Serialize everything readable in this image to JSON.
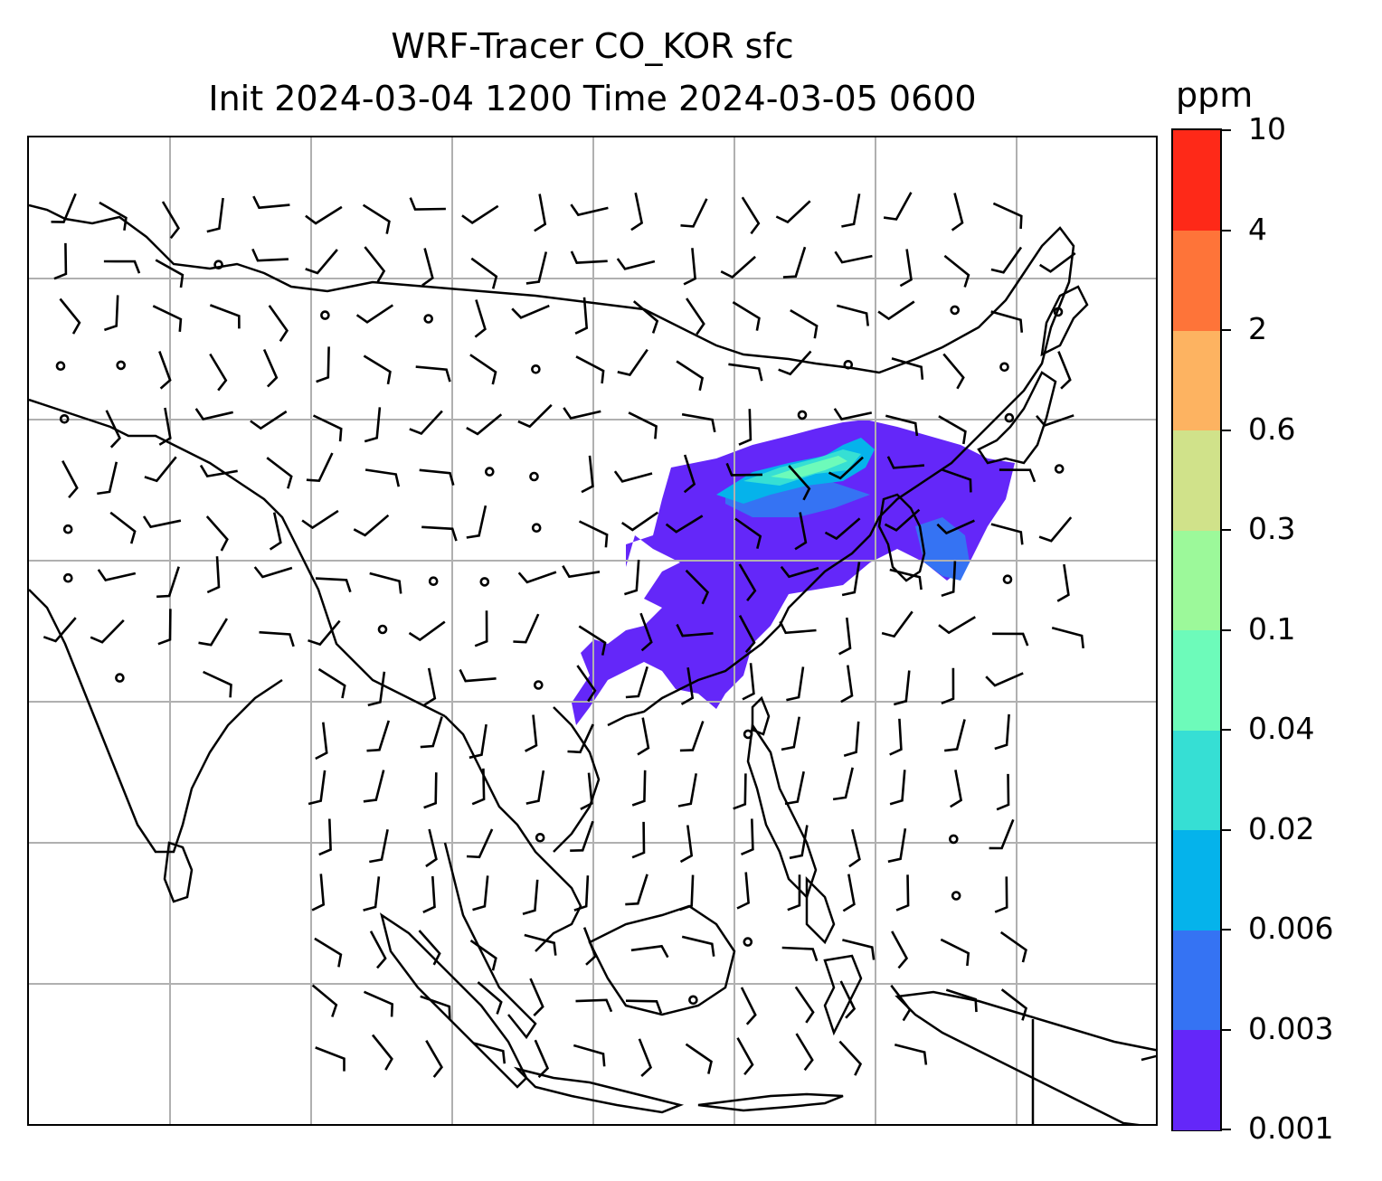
{
  "title": {
    "line1": "WRF-Tracer CO_KOR sfc",
    "line2": "Init 2024-03-04 1200 Time 2024-03-05 0600"
  },
  "colorbar": {
    "unit": "ppm",
    "levels": [
      "0.001",
      "0.003",
      "0.006",
      "0.02",
      "0.04",
      "0.1",
      "0.3",
      "0.6",
      "2",
      "4",
      "10"
    ],
    "colors": [
      "#6427f9",
      "#3573f3",
      "#05b3eb",
      "#36dfd4",
      "#6dfbba",
      "#9cf99a",
      "#d0e28a",
      "#fdb361",
      "#fe7439",
      "#fe2918"
    ]
  },
  "map": {
    "grid_color": "#b0b0b0",
    "coast_color": "#000000"
  }
}
